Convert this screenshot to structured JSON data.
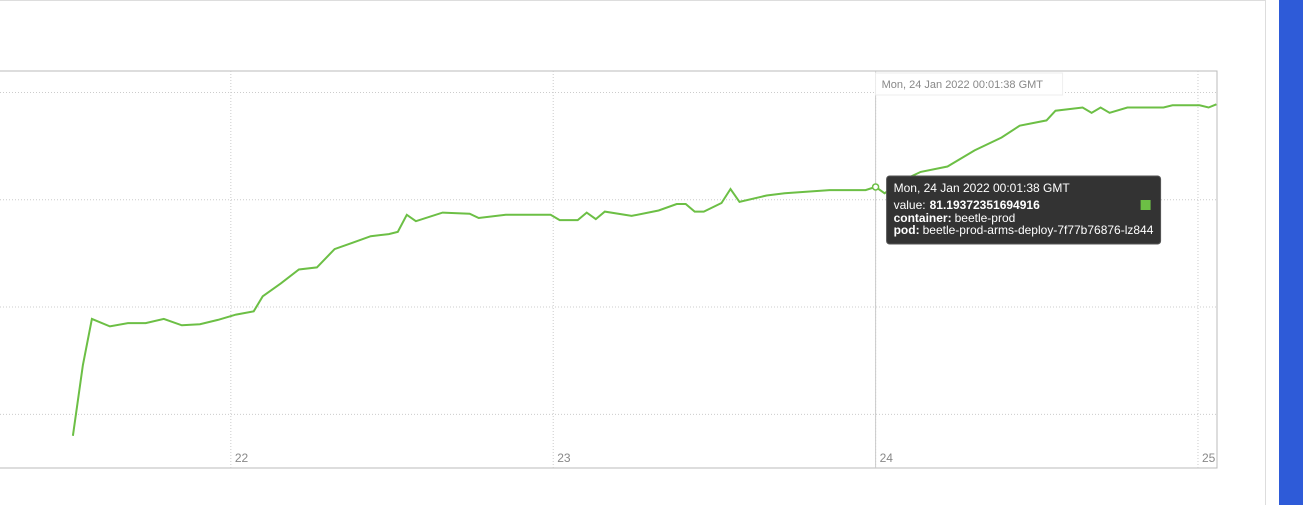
{
  "chart_data": {
    "type": "line",
    "x": [
      21.51,
      21.541,
      21.569,
      21.625,
      21.681,
      21.736,
      21.792,
      21.848,
      21.904,
      21.96,
      22.016,
      22.071,
      22.099,
      22.155,
      22.211,
      22.267,
      22.322,
      22.378,
      22.434,
      22.49,
      22.518,
      22.546,
      22.574,
      22.657,
      22.741,
      22.769,
      22.853,
      22.992,
      23.02,
      23.076,
      23.104,
      23.132,
      23.16,
      23.243,
      23.327,
      23.383,
      23.411,
      23.439,
      23.467,
      23.522,
      23.55,
      23.578,
      23.662,
      23.718,
      23.857,
      23.969,
      24.0,
      24.028,
      24.084,
      24.14,
      24.223,
      24.307,
      24.391,
      24.447,
      24.53,
      24.558,
      24.642,
      24.67,
      24.698,
      24.726,
      24.781,
      24.893,
      24.921,
      25.005,
      25.033,
      25.057
    ],
    "series": [
      {
        "color": "#6cbf45",
        "values": [
          58.0,
          64.6,
          68.9,
          68.2,
          68.5,
          68.5,
          68.9,
          68.3,
          68.4,
          68.8,
          69.3,
          69.6,
          71.0,
          72.2,
          73.5,
          73.7,
          75.4,
          76.0,
          76.6,
          76.8,
          77.0,
          78.6,
          78.0,
          78.8,
          78.7,
          78.3,
          78.6,
          78.6,
          78.1,
          78.1,
          78.8,
          78.2,
          78.9,
          78.5,
          79.0,
          79.6,
          79.6,
          78.9,
          78.9,
          79.7,
          81.0,
          79.8,
          80.4,
          80.6,
          80.9,
          80.9,
          81.19372351694916,
          80.6,
          81.8,
          82.6,
          83.1,
          84.6,
          85.8,
          86.9,
          87.4,
          88.3,
          88.6,
          88.1,
          88.6,
          88.1,
          88.6,
          88.6,
          88.8,
          88.8,
          88.6,
          88.9
        ]
      }
    ],
    "xlim": [
      21.284,
      25.059
    ],
    "xticks": [
      22,
      23,
      24,
      25
    ],
    "ylim": [
      55,
      92
    ],
    "ygrid": [
      60,
      70,
      80,
      90
    ],
    "hover_index": 46
  },
  "tooltip": {
    "title": "Mon, 24 Jan 2022 00:01:38 GMT",
    "value_label": "value:",
    "fields": [
      {
        "label": "container:",
        "value": "beetle-prod"
      },
      {
        "label": "pod:",
        "value": "beetle-prod-arms-deploy-7f77b76876-lz844"
      }
    ]
  }
}
